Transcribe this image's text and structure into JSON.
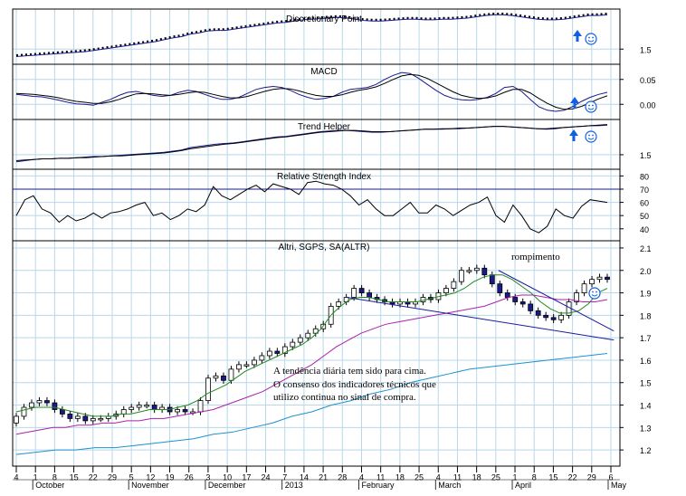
{
  "colors": {
    "grid": "#b8d8ea",
    "axis": "#000000",
    "price_up": "#ffffff",
    "price_down": "#1a1a8c",
    "ma_short": "#1f8a1f",
    "ma_mid": "#aa22aa",
    "ma_long": "#1e90d0",
    "trendline": "#1a1aa0",
    "line_main": "#1a1a8c",
    "line_signal": "#000000",
    "arrow": "#1060e0"
  },
  "icons": [
    "up-arrow-icon",
    "smiley-icon"
  ],
  "chart_data": [
    {
      "type": "line",
      "title": "Discretionary Point",
      "series": [
        {
          "values": [
            1.38,
            1.39,
            1.4,
            1.41,
            1.42,
            1.43,
            1.44,
            1.45,
            1.46,
            1.48,
            1.5,
            1.52,
            1.54,
            1.56,
            1.58,
            1.6,
            1.62,
            1.65,
            1.68,
            1.7,
            1.74,
            1.76,
            1.79,
            1.8,
            1.8,
            1.82,
            1.84,
            1.86,
            1.88,
            1.9,
            1.92,
            1.93,
            1.95,
            1.97,
            1.98,
            1.99,
            2.0,
            2.01,
            2.0,
            1.98,
            1.96,
            1.95,
            1.95,
            1.96,
            1.97,
            1.98,
            1.98,
            1.97,
            1.97,
            1.98,
            1.98,
            1.99,
            2.0,
            2.02,
            2.04,
            2.05,
            2.05,
            2.04,
            2.02,
            2.0,
            1.98,
            1.97,
            1.97,
            1.98,
            2.0,
            2.02,
            2.04,
            2.04,
            2.05
          ]
        }
      ],
      "yticks": [
        1.5
      ],
      "ylim": [
        1.3,
        2.1
      ]
    },
    {
      "type": "line",
      "title": "MACD",
      "series": [
        {
          "values": [
            0.02,
            0.018,
            0.016,
            0.015,
            0.012,
            0.008,
            0.004,
            0.001,
            0.0,
            -0.002,
            0.004,
            0.01,
            0.018,
            0.024,
            0.026,
            0.022,
            0.018,
            0.016,
            0.018,
            0.024,
            0.028,
            0.026,
            0.02,
            0.014,
            0.01,
            0.01,
            0.014,
            0.022,
            0.03,
            0.034,
            0.036,
            0.034,
            0.028,
            0.02,
            0.014,
            0.01,
            0.012,
            0.016,
            0.024,
            0.03,
            0.032,
            0.034,
            0.04,
            0.05,
            0.058,
            0.064,
            0.062,
            0.052,
            0.04,
            0.028,
            0.018,
            0.012,
            0.009,
            0.008,
            0.01,
            0.014,
            0.022,
            0.034,
            0.036,
            0.026,
            0.01,
            -0.005,
            -0.012,
            -0.014,
            -0.012,
            -0.004,
            0.006,
            0.014,
            0.02,
            0.024
          ]
        },
        {
          "values": [
            0.022,
            0.021,
            0.02,
            0.018,
            0.016,
            0.013,
            0.009,
            0.006,
            0.004,
            0.002,
            0.002,
            0.005,
            0.01,
            0.016,
            0.021,
            0.022,
            0.021,
            0.019,
            0.018,
            0.02,
            0.023,
            0.025,
            0.024,
            0.02,
            0.016,
            0.013,
            0.013,
            0.016,
            0.021,
            0.026,
            0.03,
            0.032,
            0.031,
            0.027,
            0.022,
            0.018,
            0.016,
            0.016,
            0.019,
            0.024,
            0.028,
            0.031,
            0.035,
            0.042,
            0.05,
            0.057,
            0.06,
            0.058,
            0.052,
            0.043,
            0.034,
            0.025,
            0.018,
            0.014,
            0.012,
            0.013,
            0.017,
            0.024,
            0.03,
            0.03,
            0.023,
            0.012,
            0.002,
            -0.006,
            -0.01,
            -0.009,
            -0.004,
            0.003,
            0.011,
            0.017
          ]
        }
      ],
      "yticks": [
        0.05,
        0.0
      ],
      "ylim": [
        -0.025,
        0.075
      ]
    },
    {
      "type": "line",
      "title": "Trend Helper",
      "series": [
        {
          "values": [
            1.38,
            1.4,
            1.42,
            1.43,
            1.43,
            1.44,
            1.44,
            1.45,
            1.46,
            1.47,
            1.47,
            1.48,
            1.49,
            1.5,
            1.51,
            1.52,
            1.53,
            1.54,
            1.56,
            1.58,
            1.62,
            1.64,
            1.66,
            1.68,
            1.69,
            1.7,
            1.72,
            1.74,
            1.76,
            1.78,
            1.8,
            1.81,
            1.83,
            1.85,
            1.87,
            1.89,
            1.9,
            1.91,
            1.91,
            1.9,
            1.89,
            1.88,
            1.88,
            1.89,
            1.9,
            1.91,
            1.92,
            1.93,
            1.93,
            1.93,
            1.94,
            1.94,
            1.95,
            1.96,
            1.97,
            1.98,
            1.98,
            1.97,
            1.96,
            1.95,
            1.94,
            1.93,
            1.94,
            1.96,
            1.97,
            1.98,
            1.99,
            1.99,
            2.0
          ]
        },
        {
          "values": [
            1.4,
            1.41,
            1.42,
            1.43,
            1.43,
            1.44,
            1.44,
            1.45,
            1.45,
            1.46,
            1.47,
            1.48,
            1.48,
            1.49,
            1.5,
            1.51,
            1.52,
            1.53,
            1.55,
            1.57,
            1.6,
            1.62,
            1.64,
            1.66,
            1.68,
            1.69,
            1.71,
            1.73,
            1.75,
            1.77,
            1.79,
            1.8,
            1.82,
            1.84,
            1.86,
            1.88,
            1.89,
            1.9,
            1.91,
            1.91,
            1.9,
            1.89,
            1.89,
            1.89,
            1.9,
            1.91,
            1.92,
            1.93,
            1.93,
            1.94,
            1.94,
            1.95,
            1.95,
            1.96,
            1.97,
            1.98,
            1.98,
            1.97,
            1.96,
            1.95,
            1.94,
            1.94,
            1.95,
            1.96,
            1.97,
            1.98,
            1.99,
            2.0,
            2.01
          ]
        }
      ],
      "yticks": [
        1.5
      ],
      "ylim": [
        1.3,
        2.05
      ]
    },
    {
      "type": "line",
      "title": "Relative Strength Index",
      "series": [
        {
          "values": [
            50,
            62,
            65,
            55,
            52,
            45,
            50,
            46,
            48,
            52,
            48,
            52,
            53,
            55,
            58,
            60,
            50,
            52,
            47,
            50,
            55,
            53,
            58,
            72,
            65,
            62,
            66,
            70,
            73,
            68,
            74,
            72,
            70,
            66,
            75,
            76,
            74,
            73,
            70,
            65,
            58,
            62,
            55,
            50,
            50,
            55,
            60,
            52,
            52,
            58,
            55,
            50,
            54,
            58,
            60,
            64,
            50,
            45,
            58,
            50,
            40,
            37,
            42,
            55,
            50,
            48,
            57,
            62,
            61,
            60
          ]
        }
      ],
      "hlines": [
        70,
        30
      ],
      "yticks": [
        80,
        70,
        60,
        50,
        40
      ],
      "ylim": [
        33,
        83
      ]
    },
    {
      "type": "candlestick",
      "title": "Altri, SGPS, SA(ALTR)",
      "series": [
        {
          "values": [
            1.35,
            1.39,
            1.41,
            1.42,
            1.41,
            1.38,
            1.36,
            1.34,
            1.35,
            1.33,
            1.34,
            1.34,
            1.35,
            1.36,
            1.38,
            1.39,
            1.4,
            1.4,
            1.38,
            1.39,
            1.37,
            1.38,
            1.37,
            1.37,
            1.42,
            1.52,
            1.53,
            1.51,
            1.56,
            1.58,
            1.58,
            1.6,
            1.62,
            1.64,
            1.63,
            1.66,
            1.68,
            1.7,
            1.72,
            1.74,
            1.76,
            1.84,
            1.86,
            1.88,
            1.92,
            1.9,
            1.88,
            1.87,
            1.86,
            1.85,
            1.86,
            1.85,
            1.86,
            1.88,
            1.87,
            1.9,
            1.92,
            1.95,
            2.0,
            2.0,
            2.01,
            1.98,
            1.94,
            1.9,
            1.88,
            1.86,
            1.85,
            1.82,
            1.8,
            1.79,
            1.78,
            1.8,
            1.86,
            1.9,
            1.94,
            1.96,
            1.97,
            1.96
          ]
        }
      ],
      "moving_averages": [
        {
          "values": [
            1.37,
            1.38,
            1.39,
            1.39,
            1.39,
            1.38,
            1.37,
            1.36,
            1.35,
            1.35,
            1.35,
            1.36,
            1.36,
            1.37,
            1.38,
            1.38,
            1.38,
            1.39,
            1.4,
            1.42,
            1.45,
            1.47,
            1.49,
            1.52,
            1.55,
            1.57,
            1.59,
            1.61,
            1.63,
            1.65,
            1.67,
            1.7,
            1.74,
            1.8,
            1.84,
            1.87,
            1.88,
            1.88,
            1.87,
            1.86,
            1.86,
            1.86,
            1.86,
            1.87,
            1.88,
            1.89,
            1.9,
            1.92,
            1.95,
            1.97,
            1.98,
            1.98,
            1.96,
            1.93,
            1.9,
            1.86,
            1.83,
            1.81,
            1.81,
            1.82,
            1.85,
            1.9,
            1.92
          ]
        },
        {
          "values": [
            1.27,
            1.28,
            1.29,
            1.3,
            1.3,
            1.31,
            1.31,
            1.32,
            1.32,
            1.33,
            1.33,
            1.34,
            1.34,
            1.35,
            1.36,
            1.37,
            1.38,
            1.4,
            1.42,
            1.44,
            1.46,
            1.49,
            1.52,
            1.55,
            1.58,
            1.62,
            1.66,
            1.69,
            1.72,
            1.74,
            1.76,
            1.77,
            1.78,
            1.79,
            1.8,
            1.81,
            1.82,
            1.83,
            1.84,
            1.86,
            1.88,
            1.89,
            1.89,
            1.88,
            1.87,
            1.87,
            1.86,
            1.86,
            1.87
          ]
        },
        {
          "values": [
            1.18,
            1.19,
            1.2,
            1.2,
            1.21,
            1.21,
            1.22,
            1.23,
            1.24,
            1.25,
            1.27,
            1.28,
            1.3,
            1.32,
            1.35,
            1.37,
            1.4,
            1.42,
            1.45,
            1.47,
            1.5,
            1.52,
            1.54,
            1.56,
            1.57,
            1.58,
            1.59,
            1.6,
            1.61,
            1.62,
            1.63
          ]
        }
      ],
      "trendlines": [
        {
          "from": [
            0.55,
            1.88
          ],
          "to": [
            0.99,
            1.69
          ]
        },
        {
          "from": [
            0.8,
            2.0
          ],
          "to": [
            0.99,
            1.73
          ]
        }
      ],
      "annotations": [
        "rompimento",
        "A tendência diária tem sido para cima.",
        "O consenso dos indicadores técnicos que",
        "utilizo continua no sinal de compra."
      ],
      "yticks": [
        2.1,
        2.0,
        1.9,
        1.8,
        1.7,
        1.6,
        1.5,
        1.4,
        1.3,
        1.2
      ],
      "ylim": [
        1.14,
        2.12
      ]
    }
  ],
  "xaxis": {
    "day_ticks": [
      "4",
      "1",
      "8",
      "15",
      "22",
      "29",
      "5",
      "12",
      "19",
      "26",
      "3",
      "10",
      "17",
      "24",
      "7",
      "14",
      "21",
      "28",
      "4",
      "11",
      "18",
      "25",
      "4",
      "11",
      "18",
      "25",
      "1",
      "8",
      "15",
      "22",
      "29",
      "6"
    ],
    "month_labels": [
      "October",
      "November",
      "December",
      "2013",
      "February",
      "March",
      "April",
      "May"
    ]
  }
}
